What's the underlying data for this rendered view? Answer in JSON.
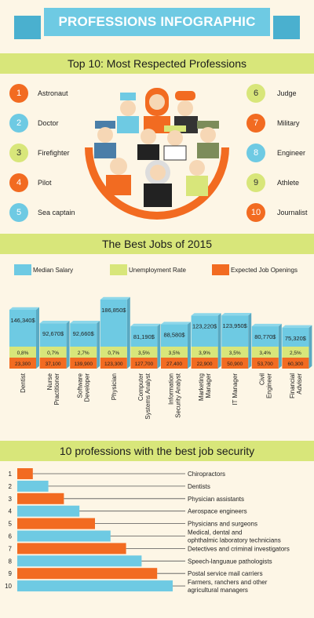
{
  "title": "PROFESSIONS INFOGRAPHIC",
  "section1": {
    "title": "Top 10: Most Respected Professions",
    "left": [
      {
        "num": "1",
        "label": "Astronaut",
        "color": "orange"
      },
      {
        "num": "2",
        "label": "Doctor",
        "color": "blue"
      },
      {
        "num": "3",
        "label": "Firefighter",
        "color": "green"
      },
      {
        "num": "4",
        "label": "Pilot",
        "color": "orange"
      },
      {
        "num": "5",
        "label": "Sea captain",
        "color": "blue"
      }
    ],
    "right": [
      {
        "num": "6",
        "label": "Judge",
        "color": "green"
      },
      {
        "num": "7",
        "label": "Military",
        "color": "orange"
      },
      {
        "num": "8",
        "label": "Engineer",
        "color": "blue"
      },
      {
        "num": "9",
        "label": "Athlete",
        "color": "green"
      },
      {
        "num": "10",
        "label": "Journalist",
        "color": "orange"
      }
    ]
  },
  "colors": {
    "orange": "#f26b21",
    "blue": "#6ecae3",
    "green": "#d8e67a",
    "band": "#d8e67a",
    "background": "#fdf6e6"
  },
  "chart_data": [
    {
      "type": "bar",
      "title": "The Best Jobs of 2015",
      "legend": [
        "Median Salary",
        "Unemployment Rate",
        "Expected Job Openings"
      ],
      "categories": [
        "Dentist",
        "Nurse Practitioner",
        "Software Developer",
        "Physician",
        "Computer Systems Analyst",
        "Information Security Analyst",
        "Marketing Manager",
        "IT Manager",
        "Civil Engineer",
        "Financial Adviser"
      ],
      "series": [
        {
          "name": "Median Salary",
          "values": [
            146340,
            92670,
            92660,
            186850,
            81190,
            88580,
            123220,
            123950,
            80770,
            75320
          ],
          "labels": [
            "146,340$",
            "92,670$",
            "92,660$",
            "186,850$",
            "81,190$",
            "88,580$",
            "123,220$",
            "123,950$",
            "80,770$",
            "75,320$"
          ]
        },
        {
          "name": "Unemployment Rate",
          "values": [
            0.8,
            0.7,
            2.7,
            0.7,
            3.5,
            3.5,
            3.9,
            3.5,
            3.4,
            2.5
          ],
          "labels": [
            "0,8%",
            "0,7%",
            "2,7%",
            "0,7%",
            "3,5%",
            "3,5%",
            "3,9%",
            "3,5%",
            "3,4%",
            "2,5%"
          ]
        },
        {
          "name": "Expected Job Openings",
          "values": [
            23300,
            37100,
            139900,
            123300,
            127700,
            27400,
            22900,
            50900,
            53700,
            60300
          ],
          "labels": [
            "23,300",
            "37,100",
            "139,900",
            "123,300",
            "127,700",
            "27,400",
            "22,900",
            "50,900",
            "53,700",
            "60,300"
          ]
        }
      ],
      "tick_labels": [
        [
          "Dentist"
        ],
        [
          "Nurse",
          "Practitioner"
        ],
        [
          "Software",
          "Developer"
        ],
        [
          "Physician"
        ],
        [
          "Computer",
          "Systems Analyst"
        ],
        [
          "Information",
          "Security Analyst"
        ],
        [
          "Marketing",
          "Manager"
        ],
        [
          "IT Manager"
        ],
        [
          "Civil",
          "Engineer"
        ],
        [
          "Financial",
          "Adviser"
        ]
      ]
    },
    {
      "type": "bar",
      "title": "10 professions with the best job security",
      "categories": [
        "Chiropractors",
        "Dentists",
        "Physician assistants",
        "Aerospace engineers",
        "Physicians and surgeons",
        "Medical, dental and ophthalmic laboratory technicians",
        "Detectives and criminal investigators",
        "Speech-languaue pathologists",
        "Postal service mail carriers",
        "Farmers, ranchers and other agricultural managers"
      ],
      "ranks": [
        "1",
        "2",
        "3",
        "4",
        "5",
        "6",
        "7",
        "8",
        "9",
        "10"
      ],
      "values": [
        1,
        2,
        3,
        4,
        5,
        6,
        7,
        8,
        9,
        10
      ],
      "label_lines": [
        [
          "Chiropractors"
        ],
        [
          "Dentists"
        ],
        [
          "Physician assistants"
        ],
        [
          "Aerospace engineers"
        ],
        [
          "Physicians and surgeons"
        ],
        [
          "Medical, dental and",
          "ophthalmic laboratory technicians"
        ],
        [
          "Detectives and criminal investigators"
        ],
        [
          "Speech-languaue pathologists"
        ],
        [
          "Postal service mail carriers"
        ],
        [
          "Farmers, ranchers and other",
          "agricultural managers"
        ]
      ]
    }
  ]
}
